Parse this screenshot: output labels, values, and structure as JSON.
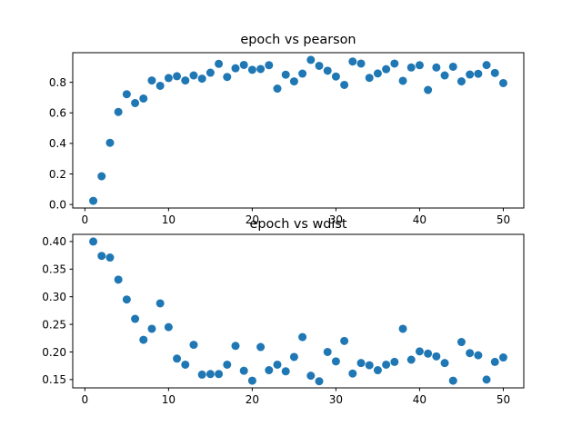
{
  "chart_data": [
    {
      "type": "scatter",
      "title": "epoch vs pearson",
      "xlabel": "",
      "ylabel": "",
      "xlim": [
        -1.45,
        52.45
      ],
      "ylim": [
        -0.023,
        0.994
      ],
      "xticks": [
        0,
        10,
        20,
        30,
        40,
        50
      ],
      "yticks": [
        0.0,
        0.2,
        0.4,
        0.6,
        0.8
      ],
      "ytick_labels": [
        "0.0",
        "0.2",
        "0.4",
        "0.6",
        "0.8"
      ],
      "grid": false,
      "marker_color": "#1f77b4",
      "x": [
        1,
        2,
        3,
        4,
        5,
        6,
        7,
        8,
        9,
        10,
        11,
        12,
        13,
        14,
        15,
        16,
        17,
        18,
        19,
        20,
        21,
        22,
        23,
        24,
        25,
        26,
        27,
        28,
        29,
        30,
        31,
        32,
        33,
        34,
        35,
        36,
        37,
        38,
        39,
        40,
        41,
        42,
        43,
        44,
        45,
        46,
        47,
        48,
        49,
        50
      ],
      "y": [
        0.024,
        0.185,
        0.404,
        0.606,
        0.722,
        0.664,
        0.694,
        0.812,
        0.777,
        0.828,
        0.84,
        0.812,
        0.845,
        0.824,
        0.863,
        0.921,
        0.835,
        0.892,
        0.914,
        0.882,
        0.887,
        0.912,
        0.759,
        0.85,
        0.806,
        0.857,
        0.947,
        0.908,
        0.876,
        0.838,
        0.783,
        0.936,
        0.923,
        0.829,
        0.858,
        0.886,
        0.923,
        0.81,
        0.897,
        0.912,
        0.75,
        0.897,
        0.845,
        0.902,
        0.806,
        0.851,
        0.856,
        0.913,
        0.861,
        0.795
      ]
    },
    {
      "type": "scatter",
      "title": "epoch vs wdist",
      "xlabel": "",
      "ylabel": "",
      "xlim": [
        -1.45,
        52.45
      ],
      "ylim": [
        0.135,
        0.413
      ],
      "xticks": [
        0,
        10,
        20,
        30,
        40,
        50
      ],
      "yticks": [
        0.15,
        0.2,
        0.25,
        0.3,
        0.35,
        0.4
      ],
      "ytick_labels": [
        "0.15",
        "0.20",
        "0.25",
        "0.30",
        "0.35",
        "0.40"
      ],
      "grid": false,
      "marker_color": "#1f77b4",
      "x": [
        1,
        2,
        3,
        4,
        5,
        6,
        7,
        8,
        9,
        10,
        11,
        12,
        13,
        14,
        15,
        16,
        17,
        18,
        19,
        20,
        21,
        22,
        23,
        24,
        25,
        26,
        27,
        28,
        29,
        30,
        31,
        32,
        33,
        34,
        35,
        36,
        37,
        38,
        39,
        40,
        41,
        42,
        43,
        44,
        45,
        46,
        47,
        48,
        49,
        50
      ],
      "y": [
        0.4,
        0.374,
        0.371,
        0.331,
        0.295,
        0.26,
        0.222,
        0.242,
        0.288,
        0.245,
        0.188,
        0.177,
        0.213,
        0.159,
        0.16,
        0.16,
        0.177,
        0.211,
        0.166,
        0.148,
        0.209,
        0.167,
        0.177,
        0.165,
        0.191,
        0.227,
        0.157,
        0.147,
        0.2,
        0.183,
        0.22,
        0.161,
        0.18,
        0.176,
        0.167,
        0.177,
        0.182,
        0.242,
        0.186,
        0.201,
        0.197,
        0.192,
        0.18,
        0.148,
        0.218,
        0.198,
        0.194,
        0.15,
        0.182,
        0.19
      ]
    }
  ]
}
